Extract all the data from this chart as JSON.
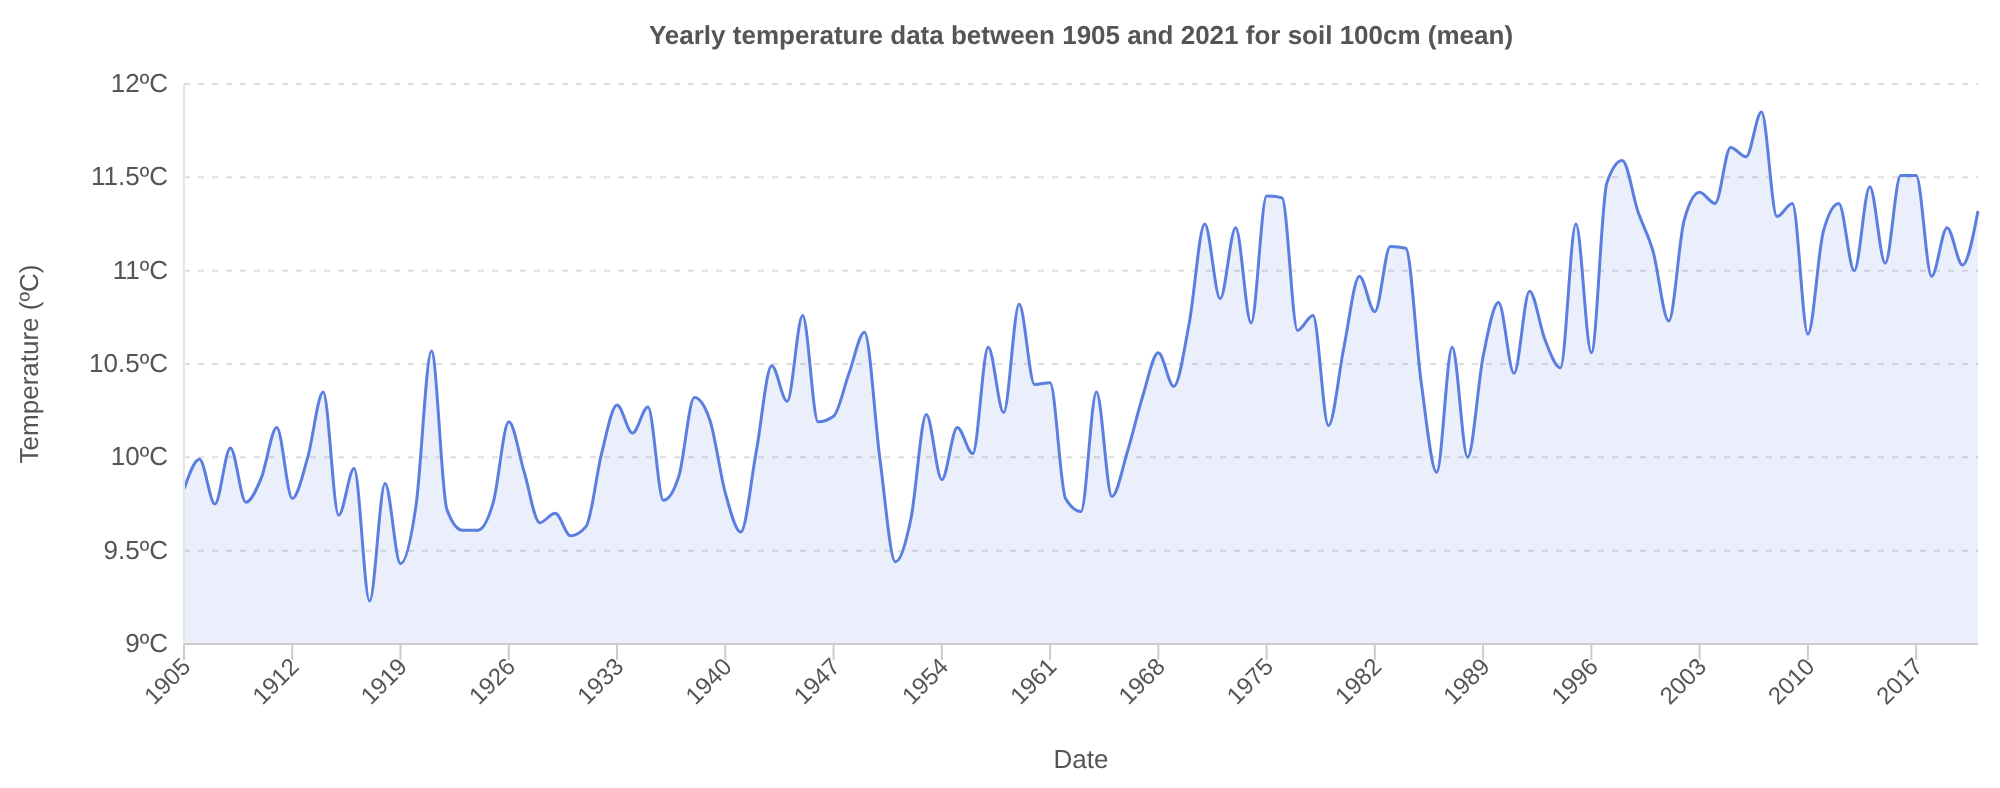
{
  "chart_data": {
    "type": "area",
    "title": "Yearly temperature data between 1905 and 2021 for soil 100cm (mean)",
    "xlabel": "Date",
    "ylabel": "Temperature (ºC)",
    "x": [
      1905,
      1906,
      1907,
      1908,
      1909,
      1910,
      1911,
      1912,
      1913,
      1914,
      1915,
      1916,
      1917,
      1918,
      1919,
      1920,
      1921,
      1922,
      1923,
      1924,
      1925,
      1926,
      1927,
      1928,
      1929,
      1930,
      1931,
      1932,
      1933,
      1934,
      1935,
      1936,
      1937,
      1938,
      1939,
      1940,
      1941,
      1942,
      1943,
      1944,
      1945,
      1946,
      1947,
      1948,
      1949,
      1950,
      1951,
      1952,
      1953,
      1954,
      1955,
      1956,
      1957,
      1958,
      1959,
      1960,
      1961,
      1962,
      1963,
      1964,
      1965,
      1966,
      1967,
      1968,
      1969,
      1970,
      1971,
      1972,
      1973,
      1974,
      1975,
      1976,
      1977,
      1978,
      1979,
      1980,
      1981,
      1982,
      1983,
      1984,
      1985,
      1986,
      1987,
      1988,
      1989,
      1990,
      1991,
      1992,
      1993,
      1994,
      1995,
      1996,
      1997,
      1998,
      1999,
      2000,
      2001,
      2002,
      2003,
      2004,
      2005,
      2006,
      2007,
      2008,
      2009,
      2010,
      2011,
      2012,
      2013,
      2014,
      2015,
      2016,
      2017,
      2018,
      2019,
      2020,
      2021
    ],
    "series": [
      {
        "color": "#5b7fe0",
        "values": [
          9.83,
          9.99,
          9.75,
          10.05,
          9.76,
          9.89,
          10.16,
          9.78,
          10.0,
          10.35,
          9.69,
          9.94,
          9.23,
          9.86,
          9.43,
          9.74,
          10.57,
          9.72,
          9.61,
          9.61,
          9.76,
          10.19,
          9.92,
          9.65,
          9.7,
          9.58,
          9.63,
          10.02,
          10.28,
          10.13,
          10.27,
          9.77,
          9.9,
          10.32,
          10.2,
          9.81,
          9.6,
          10.03,
          10.49,
          10.3,
          10.76,
          10.19,
          10.22,
          10.45,
          10.67,
          9.99,
          9.44,
          9.67,
          10.23,
          9.88,
          10.16,
          10.02,
          10.59,
          10.24,
          10.82,
          10.39,
          10.4,
          9.78,
          9.71,
          10.35,
          9.79,
          10.03,
          10.33,
          10.56,
          10.38,
          10.72,
          11.25,
          10.85,
          11.23,
          10.72,
          11.4,
          11.39,
          10.68,
          10.76,
          10.17,
          10.59,
          10.97,
          10.78,
          11.13,
          11.12,
          10.4,
          9.92,
          10.59,
          10.0,
          10.54,
          10.83,
          10.45,
          10.89,
          10.63,
          10.48,
          11.25,
          10.56,
          11.47,
          11.59,
          11.32,
          11.1,
          10.73,
          11.27,
          11.42,
          11.36,
          11.66,
          11.61,
          11.85,
          11.29,
          11.36,
          10.66,
          11.21,
          11.36,
          11.0,
          11.45,
          11.04,
          11.51,
          11.51,
          10.97,
          11.23,
          11.03,
          11.32
        ]
      }
    ],
    "xlim": [
      1905,
      2021
    ],
    "xticks": [
      1905,
      1912,
      1919,
      1926,
      1933,
      1940,
      1947,
      1954,
      1961,
      1968,
      1975,
      1982,
      1989,
      1996,
      2003,
      2010,
      2017
    ],
    "ylim": [
      9,
      12
    ],
    "yticks": [
      {
        "value": 9,
        "label": "9ºC"
      },
      {
        "value": 9.5,
        "label": "9.5ºC"
      },
      {
        "value": 10,
        "label": "10ºC"
      },
      {
        "value": 10.5,
        "label": "10.5ºC"
      },
      {
        "value": 11,
        "label": "11ºC"
      },
      {
        "value": 11.5,
        "label": "11.5ºC"
      },
      {
        "value": 12,
        "label": "12ºC"
      }
    ],
    "grid": "y"
  }
}
